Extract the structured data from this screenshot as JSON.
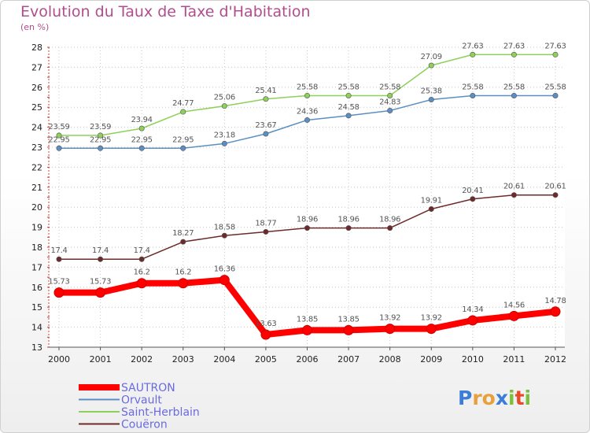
{
  "title": "Evolution du Taux de Taxe d'Habitation",
  "subtitle": "(en %)",
  "logo": {
    "text": "Proxiti",
    "colors": [
      "#3b7dd8",
      "#e8a03c",
      "#e8a03c",
      "#3b7dd8",
      "#7cbf3f",
      "#e84a2a",
      "#7cbf3f"
    ]
  },
  "chart_data": {
    "type": "line",
    "title": "Evolution du Taux de Taxe d'Habitation",
    "ylabel": "(en %)",
    "xlabel": "",
    "ylim": [
      13,
      28
    ],
    "yticks": [
      13,
      14,
      15,
      16,
      17,
      18,
      19,
      20,
      21,
      22,
      23,
      24,
      25,
      26,
      27,
      28
    ],
    "categories": [
      "2000",
      "2001",
      "2002",
      "2003",
      "2004",
      "2005",
      "2006",
      "2007",
      "2008",
      "2009",
      "2010",
      "2011",
      "2012"
    ],
    "grid": true,
    "legend_position": "bottom-left",
    "series": [
      {
        "name": "SAUTRON",
        "color": "#ff0000",
        "width": "thick",
        "values": [
          15.73,
          15.73,
          16.2,
          16.2,
          16.36,
          13.63,
          13.85,
          13.85,
          13.92,
          13.92,
          14.34,
          14.56,
          14.78
        ],
        "labels": [
          "15.73",
          "15.73",
          "16.2",
          "16.2",
          "16.36",
          "13.63",
          "13.85",
          "13.85",
          "13.92",
          "13.92",
          "14.34",
          "14.56",
          "14.78"
        ]
      },
      {
        "name": "Orvault",
        "color": "#5b8fc4",
        "width": "thin",
        "values": [
          22.95,
          22.95,
          22.95,
          22.95,
          23.18,
          23.67,
          24.36,
          24.58,
          24.83,
          25.38,
          25.58,
          25.58,
          25.58
        ],
        "labels": [
          "22.95",
          "22.95",
          "22.95",
          "22.95",
          "23.18",
          "23.67",
          "24.36",
          "24.58",
          "24.83",
          "25.38",
          "25.58",
          "25.58",
          "25.58"
        ]
      },
      {
        "name": "Saint-Herblain",
        "color": "#8ed05a",
        "width": "thin",
        "values": [
          23.59,
          23.59,
          23.94,
          24.77,
          25.06,
          25.41,
          25.58,
          25.58,
          25.58,
          27.09,
          27.63,
          27.63,
          27.63
        ],
        "labels": [
          "23.59",
          "23.59",
          "23.94",
          "24.77",
          "25.06",
          "25.41",
          "25.58",
          "25.58",
          "25.58",
          "27.09",
          "27.63",
          "27.63",
          "27.63"
        ]
      },
      {
        "name": "Couëron",
        "color": "#6e2a2a",
        "width": "thin",
        "values": [
          17.4,
          17.4,
          17.4,
          18.27,
          18.58,
          18.77,
          18.96,
          18.96,
          18.96,
          19.91,
          20.41,
          20.61,
          20.61
        ],
        "labels": [
          "17.4",
          "17.4",
          "17.4",
          "18.27",
          "18.58",
          "18.77",
          "18.96",
          "18.96",
          "18.96",
          "19.91",
          "20.41",
          "20.61",
          "20.61"
        ]
      }
    ]
  }
}
